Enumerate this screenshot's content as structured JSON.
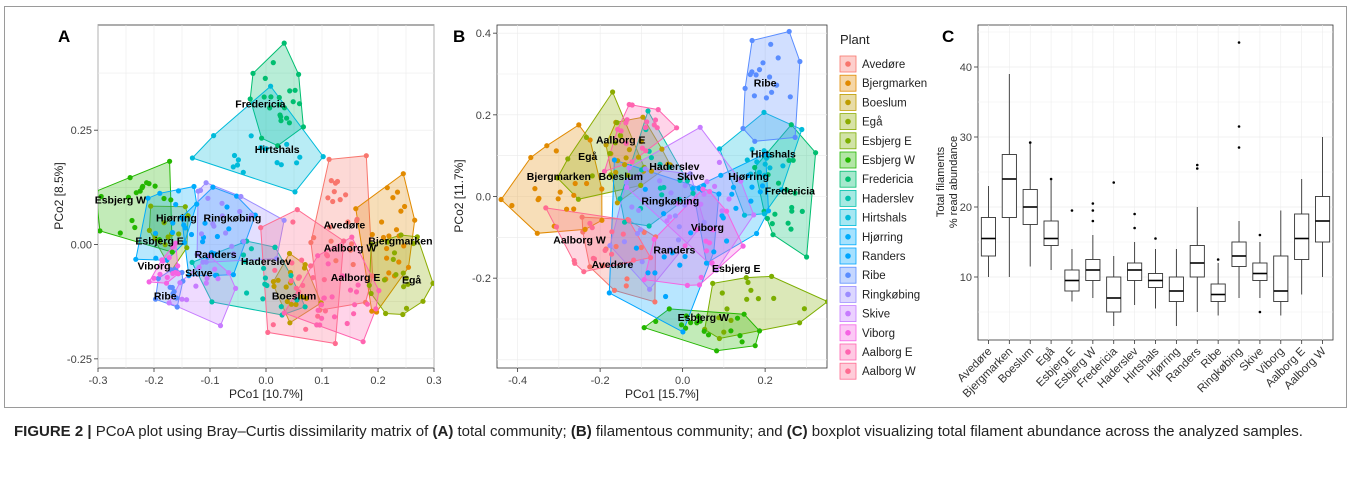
{
  "figure": {
    "caption_label": "FIGURE 2 |",
    "caption_text": " PCoA plot using Bray–Curtis dissimilarity matrix of ",
    "caption_a": "(A)",
    "caption_a_text": " total community; ",
    "caption_b": "(B)",
    "caption_b_text": " filamentous community; and ",
    "caption_c": "(C)",
    "caption_c_text": " boxplot visualizing total filament abundance across the analyzed samples."
  },
  "colors": {
    "Avedøre": "#F8766D",
    "Bjergmarken": "#E18A00",
    "Boeslum": "#BE9C00",
    "Egå": "#8CAB00",
    "Esbjerg E": "#7CAE00",
    "Esbjerg W": "#24B700",
    "Fredericia": "#00BE70",
    "Haderslev": "#00C1AB",
    "Hirtshals": "#00BBDA",
    "Hjørring": "#00ACFC",
    "Randers": "#00A5FF",
    "Ribe": "#5A8DFF",
    "Ringkøbing": "#9C8DFF",
    "Skive": "#C77CFF",
    "Viborg": "#F564E3",
    "Aalborg E": "#FF64B0",
    "Aalborg W": "#FF6C91"
  },
  "chart_data": [
    {
      "type": "scatter",
      "panel_label": "A",
      "xlabel": "PCo1 [10.7%]",
      "ylabel": "PCo2 [8.5%]",
      "xlim": [
        -0.3,
        0.3
      ],
      "ylim": [
        -0.27,
        0.48
      ],
      "xticks": [
        -0.3,
        -0.2,
        -0.1,
        0.0,
        0.1,
        0.2,
        0.3
      ],
      "xtick_labels": [
        "-0.3",
        "-0.2",
        "-0.1",
        "0.0",
        "0.1",
        "0.2",
        "0.3"
      ],
      "yticks": [
        -0.25,
        0.0,
        0.25
      ],
      "ytick_labels": [
        "-0.25",
        "0.00",
        "0.25"
      ],
      "grid": true,
      "groups": [
        {
          "name": "Avedøre",
          "cx": 0.13,
          "cy": 0.03,
          "sx": 0.03,
          "sy": 0.08,
          "n": 24
        },
        {
          "name": "Bjergmarken",
          "cx": 0.22,
          "cy": 0.02,
          "sx": 0.03,
          "sy": 0.07,
          "n": 24
        },
        {
          "name": "Boeslum",
          "cx": 0.05,
          "cy": -0.09,
          "sx": 0.03,
          "sy": 0.04,
          "n": 16
        },
        {
          "name": "Egå",
          "cx": 0.24,
          "cy": -0.05,
          "sx": 0.03,
          "sy": 0.07,
          "n": 20
        },
        {
          "name": "Esbjerg E",
          "cx": -0.18,
          "cy": 0.0,
          "sx": 0.02,
          "sy": 0.04,
          "n": 14
        },
        {
          "name": "Esbjerg W",
          "cx": -0.22,
          "cy": 0.1,
          "sx": 0.04,
          "sy": 0.06,
          "n": 20
        },
        {
          "name": "Fredericia",
          "cx": 0.02,
          "cy": 0.32,
          "sx": 0.025,
          "sy": 0.07,
          "n": 24
        },
        {
          "name": "Haderslev",
          "cx": 0.0,
          "cy": -0.05,
          "sx": 0.05,
          "sy": 0.05,
          "n": 20
        },
        {
          "name": "Hirtshals",
          "cx": 0.0,
          "cy": 0.2,
          "sx": 0.05,
          "sy": 0.04,
          "n": 18
        },
        {
          "name": "Hjørring",
          "cx": -0.15,
          "cy": 0.05,
          "sx": 0.03,
          "sy": 0.05,
          "n": 16
        },
        {
          "name": "Randers",
          "cx": -0.08,
          "cy": 0.0,
          "sx": 0.04,
          "sy": 0.06,
          "n": 18
        },
        {
          "name": "Ribe",
          "cx": -0.17,
          "cy": -0.1,
          "sx": 0.02,
          "sy": 0.03,
          "n": 12
        },
        {
          "name": "Ringkøbing",
          "cx": -0.08,
          "cy": 0.05,
          "sx": 0.05,
          "sy": 0.06,
          "n": 22
        },
        {
          "name": "Skive",
          "cx": -0.12,
          "cy": -0.08,
          "sx": 0.03,
          "sy": 0.04,
          "n": 14
        },
        {
          "name": "Viborg",
          "cx": -0.18,
          "cy": -0.05,
          "sx": 0.02,
          "sy": 0.04,
          "n": 14
        },
        {
          "name": "Aalborg E",
          "cx": 0.14,
          "cy": -0.12,
          "sx": 0.04,
          "sy": 0.05,
          "n": 24
        },
        {
          "name": "Aalborg W",
          "cx": 0.08,
          "cy": -0.05,
          "sx": 0.05,
          "sy": 0.07,
          "n": 24
        }
      ],
      "labels": [
        {
          "text": "Fredericia",
          "x": -0.01,
          "y": 0.3
        },
        {
          "text": "Hirtshals",
          "x": 0.02,
          "y": 0.2
        },
        {
          "text": "Esbjerg W",
          "x": -0.26,
          "y": 0.09
        },
        {
          "text": "Hjørring",
          "x": -0.16,
          "y": 0.05
        },
        {
          "text": "Ringkøbing",
          "x": -0.06,
          "y": 0.05
        },
        {
          "text": "Esbjerg E",
          "x": -0.19,
          "y": 0.0
        },
        {
          "text": "Randers",
          "x": -0.09,
          "y": -0.03
        },
        {
          "text": "Viborg",
          "x": -0.2,
          "y": -0.055
        },
        {
          "text": "Skive",
          "x": -0.12,
          "y": -0.07
        },
        {
          "text": "Ribe",
          "x": -0.18,
          "y": -0.12
        },
        {
          "text": "Avedøre",
          "x": 0.14,
          "y": 0.035
        },
        {
          "text": "Bjergmarken",
          "x": 0.24,
          "y": 0.0
        },
        {
          "text": "Aalborg W",
          "x": 0.15,
          "y": -0.015
        },
        {
          "text": "Haderslev",
          "x": 0.0,
          "y": -0.045
        },
        {
          "text": "Aalborg E",
          "x": 0.16,
          "y": -0.08
        },
        {
          "text": "Egå",
          "x": 0.26,
          "y": -0.085
        },
        {
          "text": "Boeslum",
          "x": 0.05,
          "y": -0.12
        }
      ]
    },
    {
      "type": "scatter",
      "panel_label": "B",
      "xlabel": "PCo1 [15.7%]",
      "ylabel": "PCo2 [11.7%]",
      "xlim": [
        -0.45,
        0.35
      ],
      "ylim": [
        -0.42,
        0.42
      ],
      "xticks": [
        -0.4,
        -0.2,
        0.0,
        0.2
      ],
      "xtick_labels": [
        "-0.4",
        "-0.2",
        "0.0",
        "0.2"
      ],
      "yticks": [
        -0.2,
        0.0,
        0.2,
        0.4
      ],
      "ytick_labels": [
        "-0.2",
        "0.0",
        "0.2",
        "0.4"
      ],
      "grid": true,
      "legend": {
        "title": "Plant",
        "position": "right"
      },
      "groups": [
        {
          "name": "Avedøre",
          "cx": -0.15,
          "cy": -0.15,
          "sx": 0.05,
          "sy": 0.06,
          "n": 14
        },
        {
          "name": "Bjergmarken",
          "cx": -0.3,
          "cy": 0.0,
          "sx": 0.07,
          "sy": 0.09,
          "n": 22
        },
        {
          "name": "Boeslum",
          "cx": -0.15,
          "cy": 0.05,
          "sx": 0.06,
          "sy": 0.07,
          "n": 18
        },
        {
          "name": "Egå",
          "cx": -0.2,
          "cy": 0.1,
          "sx": 0.05,
          "sy": 0.05,
          "n": 14
        },
        {
          "name": "Esbjerg E",
          "cx": 0.15,
          "cy": -0.25,
          "sx": 0.06,
          "sy": 0.05,
          "n": 18
        },
        {
          "name": "Esbjerg W",
          "cx": 0.05,
          "cy": -0.32,
          "sx": 0.07,
          "sy": 0.03,
          "n": 20
        },
        {
          "name": "Fredericia",
          "cx": 0.25,
          "cy": 0.0,
          "sx": 0.04,
          "sy": 0.08,
          "n": 20
        },
        {
          "name": "Haderslev",
          "cx": -0.05,
          "cy": 0.05,
          "sx": 0.07,
          "sy": 0.08,
          "n": 18
        },
        {
          "name": "Hirtshals",
          "cx": 0.2,
          "cy": 0.1,
          "sx": 0.05,
          "sy": 0.07,
          "n": 18
        },
        {
          "name": "Hjørring",
          "cx": 0.15,
          "cy": 0.0,
          "sx": 0.06,
          "sy": 0.08,
          "n": 18
        },
        {
          "name": "Randers",
          "cx": 0.0,
          "cy": -0.1,
          "sx": 0.08,
          "sy": 0.08,
          "n": 18
        },
        {
          "name": "Ribe",
          "cx": 0.18,
          "cy": 0.28,
          "sx": 0.05,
          "sy": 0.07,
          "n": 20
        },
        {
          "name": "Ringkøbing",
          "cx": -0.05,
          "cy": -0.05,
          "sx": 0.07,
          "sy": 0.08,
          "n": 20
        },
        {
          "name": "Skive",
          "cx": 0.0,
          "cy": 0.0,
          "sx": 0.08,
          "sy": 0.08,
          "n": 18
        },
        {
          "name": "Viborg",
          "cx": 0.05,
          "cy": -0.1,
          "sx": 0.06,
          "sy": 0.07,
          "n": 16
        },
        {
          "name": "Aalborg E",
          "cx": -0.12,
          "cy": 0.15,
          "sx": 0.06,
          "sy": 0.06,
          "n": 18
        },
        {
          "name": "Aalborg W",
          "cx": -0.2,
          "cy": -0.12,
          "sx": 0.05,
          "sy": 0.05,
          "n": 16
        }
      ],
      "labels": [
        {
          "text": "Ribe",
          "x": 0.2,
          "y": 0.27
        },
        {
          "text": "Aalborg E",
          "x": -0.15,
          "y": 0.13
        },
        {
          "text": "Hirtshals",
          "x": 0.22,
          "y": 0.095
        },
        {
          "text": "Egå",
          "x": -0.23,
          "y": 0.09
        },
        {
          "text": "Haderslev",
          "x": -0.02,
          "y": 0.065
        },
        {
          "text": "Skive",
          "x": 0.02,
          "y": 0.04
        },
        {
          "text": "Hjørring",
          "x": 0.16,
          "y": 0.04
        },
        {
          "text": "Bjergmarken",
          "x": -0.3,
          "y": 0.04
        },
        {
          "text": "Boeslum",
          "x": -0.15,
          "y": 0.04
        },
        {
          "text": "Fredericia",
          "x": 0.26,
          "y": 0.005
        },
        {
          "text": "Ringkøbing",
          "x": -0.03,
          "y": -0.02
        },
        {
          "text": "Viborg",
          "x": 0.06,
          "y": -0.085
        },
        {
          "text": "Aalborg W",
          "x": -0.25,
          "y": -0.115
        },
        {
          "text": "Randers",
          "x": -0.02,
          "y": -0.14
        },
        {
          "text": "Avedøre",
          "x": -0.17,
          "y": -0.175
        },
        {
          "text": "Esbjerg E",
          "x": 0.13,
          "y": -0.185
        },
        {
          "text": "Esbjerg W",
          "x": 0.05,
          "y": -0.305
        }
      ]
    },
    {
      "type": "box",
      "panel_label": "C",
      "ylabel_lines": [
        "Total filaments",
        "% read abundance"
      ],
      "ylim": [
        1,
        46
      ],
      "yticks": [
        10,
        20,
        30,
        40
      ],
      "ytick_labels": [
        "10",
        "20",
        "30",
        "40"
      ],
      "grid": true,
      "categories": [
        "Avedøre",
        "Bjergmarken",
        "Boeslum",
        "Egå",
        "Esbjerg E",
        "Esbjerg W",
        "Fredericia",
        "Haderslev",
        "Hirtshals",
        "Hjørring",
        "Randers",
        "Ribe",
        "Ringkøbing",
        "Skive",
        "Viborg",
        "Aalborg E",
        "Aalborg W"
      ],
      "boxes": [
        {
          "min": 10,
          "q1": 13,
          "median": 15.5,
          "q3": 18.5,
          "max": 23,
          "outliers": []
        },
        {
          "min": 10,
          "q1": 18.5,
          "median": 24,
          "q3": 27.5,
          "max": 39,
          "outliers": []
        },
        {
          "min": 11.5,
          "q1": 17.5,
          "median": 20,
          "q3": 22.5,
          "max": 29,
          "outliers": [
            29.2
          ]
        },
        {
          "min": 11,
          "q1": 14.5,
          "median": 15.5,
          "q3": 18,
          "max": 24,
          "outliers": [
            24
          ]
        },
        {
          "min": 6.5,
          "q1": 8,
          "median": 9.5,
          "q3": 11,
          "max": 14,
          "outliers": [
            19.5
          ]
        },
        {
          "min": 7,
          "q1": 9.5,
          "median": 11,
          "q3": 12.5,
          "max": 16,
          "outliers": [
            18,
            19.5,
            20.5
          ]
        },
        {
          "min": 3,
          "q1": 5,
          "median": 7,
          "q3": 10,
          "max": 13,
          "outliers": [
            23.5
          ]
        },
        {
          "min": 6,
          "q1": 9.5,
          "median": 11,
          "q3": 12,
          "max": 15,
          "outliers": [
            17,
            19
          ]
        },
        {
          "min": 5.5,
          "q1": 8.5,
          "median": 9.5,
          "q3": 10.5,
          "max": 14,
          "outliers": [
            15.5
          ]
        },
        {
          "min": 3,
          "q1": 6.5,
          "median": 8,
          "q3": 10,
          "max": 14,
          "outliers": []
        },
        {
          "min": 5,
          "q1": 10,
          "median": 12,
          "q3": 14.5,
          "max": 20,
          "outliers": [
            25.5,
            26
          ]
        },
        {
          "min": 4.5,
          "q1": 6.5,
          "median": 7.5,
          "q3": 9,
          "max": 12,
          "outliers": [
            12.5
          ]
        },
        {
          "min": 7,
          "q1": 11.5,
          "median": 13,
          "q3": 15,
          "max": 18,
          "outliers": [
            28.5,
            31.5,
            43.5
          ]
        },
        {
          "min": 7,
          "q1": 9.5,
          "median": 10.5,
          "q3": 12,
          "max": 15,
          "outliers": [
            5,
            16
          ]
        },
        {
          "min": 4.5,
          "q1": 6.5,
          "median": 8,
          "q3": 13,
          "max": 19.5,
          "outliers": []
        },
        {
          "min": 7.5,
          "q1": 12.5,
          "median": 15.5,
          "q3": 19,
          "max": 24,
          "outliers": []
        },
        {
          "min": 10,
          "q1": 15,
          "median": 18,
          "q3": 21.5,
          "max": 30,
          "outliers": []
        }
      ]
    }
  ]
}
